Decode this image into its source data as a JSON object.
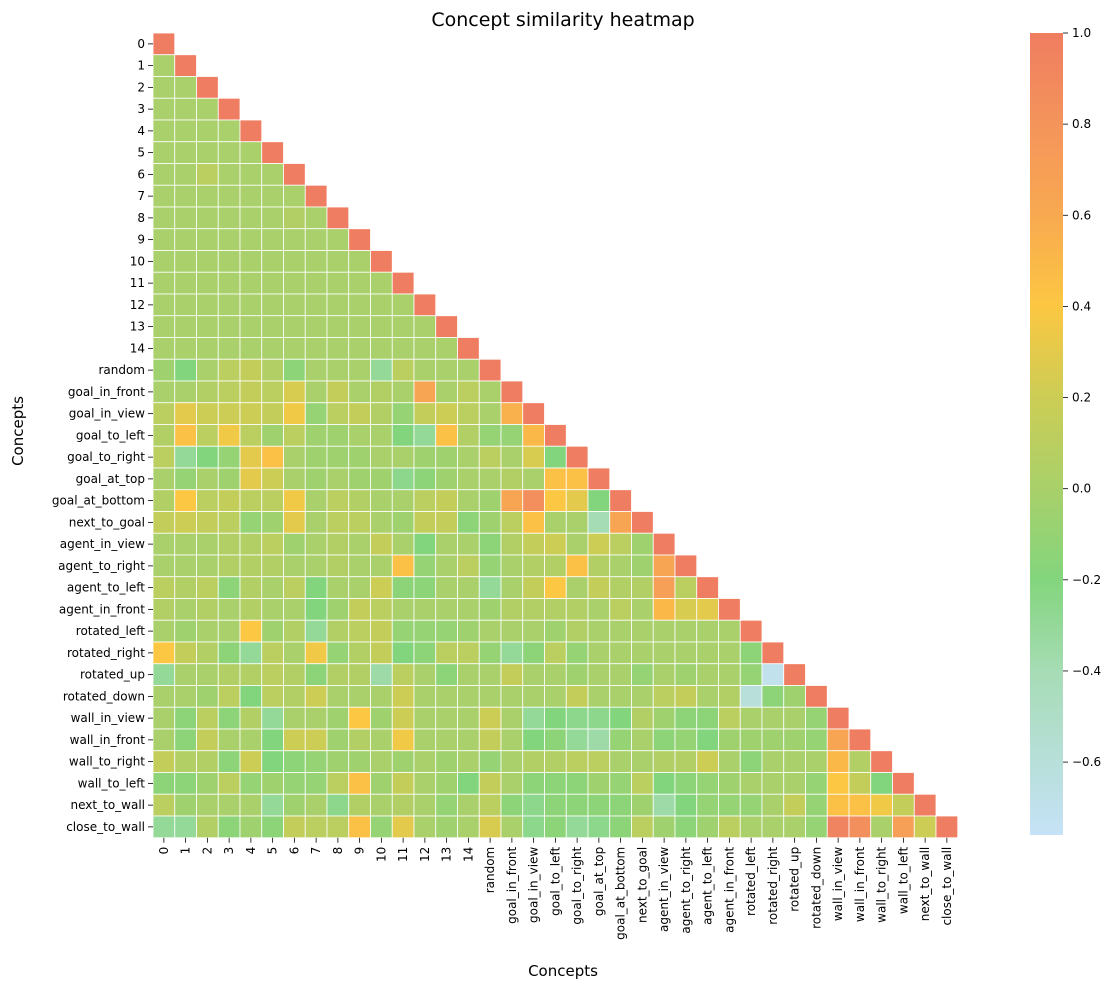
{
  "chart_data": {
    "type": "heatmap",
    "title": "Concept similarity heatmap",
    "xlabel": "Concepts",
    "ylabel": "Concepts",
    "mask": "upper-triangle",
    "labels": [
      "0",
      "1",
      "2",
      "3",
      "4",
      "5",
      "6",
      "7",
      "8",
      "9",
      "10",
      "11",
      "12",
      "13",
      "14",
      "random",
      "goal_in_front",
      "goal_in_view",
      "goal_to_left",
      "goal_to_right",
      "goal_at_top",
      "goal_at_bottom",
      "next_to_goal",
      "agent_in_view",
      "agent_to_right",
      "agent_to_left",
      "agent_in_front",
      "rotated_left",
      "rotated_right",
      "rotated_up",
      "rotated_down",
      "wall_in_view",
      "wall_in_front",
      "wall_to_right",
      "wall_to_left",
      "next_to_wall",
      "close_to_wall"
    ],
    "values": [
      [
        1.0
      ],
      [
        0.0,
        1.0
      ],
      [
        0.0,
        0.0,
        1.0
      ],
      [
        0.0,
        0.0,
        0.0,
        1.0
      ],
      [
        0.0,
        0.0,
        0.0,
        0.0,
        1.0
      ],
      [
        0.0,
        0.0,
        0.0,
        0.0,
        0.0,
        1.0
      ],
      [
        0.0,
        0.0,
        0.1,
        0.0,
        0.0,
        0.0,
        1.0
      ],
      [
        0.0,
        0.0,
        0.0,
        0.0,
        0.0,
        0.0,
        0.0,
        1.0
      ],
      [
        0.0,
        0.0,
        0.0,
        0.0,
        0.0,
        0.0,
        0.05,
        0.0,
        1.0
      ],
      [
        0.0,
        0.0,
        0.0,
        0.0,
        0.0,
        0.0,
        0.0,
        0.0,
        0.0,
        1.0
      ],
      [
        0.0,
        0.0,
        0.0,
        0.0,
        0.0,
        0.0,
        0.0,
        0.0,
        0.0,
        0.0,
        1.0
      ],
      [
        0.0,
        0.0,
        0.0,
        0.0,
        0.0,
        0.0,
        0.0,
        0.0,
        0.0,
        0.0,
        0.0,
        1.0
      ],
      [
        0.0,
        0.0,
        0.0,
        0.0,
        0.0,
        0.0,
        0.0,
        0.0,
        0.0,
        0.0,
        0.0,
        0.0,
        1.0
      ],
      [
        0.0,
        0.0,
        0.0,
        0.0,
        0.0,
        0.0,
        0.0,
        0.0,
        0.0,
        0.0,
        0.0,
        0.0,
        0.0,
        1.0
      ],
      [
        0.0,
        0.0,
        0.0,
        0.0,
        0.0,
        0.0,
        0.0,
        0.0,
        0.0,
        0.0,
        0.0,
        0.0,
        0.0,
        0.0,
        1.0
      ],
      [
        -0.05,
        -0.2,
        0.0,
        0.1,
        0.15,
        0.05,
        -0.15,
        0.0,
        0.0,
        0.0,
        -0.3,
        0.1,
        0.0,
        0.0,
        0.0,
        1.0
      ],
      [
        0.0,
        0.0,
        0.05,
        0.1,
        0.15,
        0.1,
        0.25,
        0.0,
        0.15,
        0.0,
        0.05,
        0.0,
        0.65,
        0.0,
        0.1,
        0.0,
        1.0
      ],
      [
        0.1,
        0.3,
        0.2,
        0.2,
        0.2,
        0.15,
        0.35,
        -0.1,
        0.1,
        0.15,
        0.05,
        -0.1,
        0.15,
        0.2,
        0.1,
        0.0,
        0.55,
        1.0
      ],
      [
        0.05,
        0.45,
        0.1,
        0.35,
        0.1,
        -0.05,
        0.1,
        -0.05,
        -0.05,
        0.0,
        0.0,
        -0.2,
        -0.3,
        0.45,
        0.05,
        -0.1,
        -0.1,
        0.5,
        1.0
      ],
      [
        0.1,
        -0.3,
        -0.2,
        -0.1,
        0.3,
        0.45,
        0.0,
        -0.05,
        -0.05,
        -0.05,
        0.0,
        0.0,
        -0.05,
        -0.05,
        0.0,
        0.1,
        0.0,
        0.25,
        -0.2,
        1.0
      ],
      [
        0.0,
        -0.1,
        0.0,
        -0.05,
        0.3,
        0.2,
        0.0,
        -0.05,
        0.0,
        -0.05,
        -0.05,
        -0.25,
        -0.15,
        -0.05,
        0.0,
        0.0,
        0.05,
        0.0,
        0.45,
        0.45,
        1.0
      ],
      [
        0.05,
        0.4,
        0.1,
        0.15,
        0.1,
        0.1,
        0.35,
        0.0,
        0.1,
        0.05,
        0.0,
        0.0,
        0.1,
        0.15,
        0.0,
        -0.05,
        0.65,
        0.85,
        0.4,
        0.3,
        -0.2,
        1.0
      ],
      [
        0.15,
        0.2,
        0.15,
        0.1,
        -0.1,
        -0.05,
        0.3,
        0.0,
        0.1,
        0.1,
        0.0,
        -0.05,
        0.15,
        0.15,
        -0.15,
        -0.05,
        0.1,
        0.45,
        0.0,
        0.0,
        -0.4,
        0.65,
        1.0
      ],
      [
        0.0,
        0.0,
        0.0,
        0.05,
        0.05,
        0.1,
        -0.05,
        0.0,
        0.05,
        0.0,
        0.15,
        0.0,
        -0.2,
        0.0,
        0.0,
        -0.15,
        0.05,
        0.15,
        0.2,
        0.0,
        0.2,
        0.1,
        -0.05,
        1.0
      ],
      [
        0.0,
        0.0,
        0.0,
        0.05,
        0.05,
        0.05,
        0.0,
        0.0,
        0.05,
        0.0,
        0.0,
        0.45,
        -0.1,
        0.0,
        0.1,
        -0.1,
        0.0,
        0.05,
        0.05,
        0.45,
        0.05,
        0.0,
        -0.05,
        0.65,
        1.0
      ],
      [
        0.1,
        0.05,
        0.1,
        -0.15,
        0.05,
        0.0,
        0.1,
        -0.2,
        0.0,
        0.0,
        0.2,
        -0.15,
        -0.15,
        0.0,
        0.0,
        -0.3,
        0.0,
        0.15,
        0.4,
        0.0,
        0.15,
        0.05,
        0.05,
        0.7,
        0.1,
        1.0
      ],
      [
        0.05,
        0.0,
        0.05,
        0.0,
        0.05,
        0.0,
        0.0,
        -0.2,
        -0.05,
        0.15,
        0.1,
        0.0,
        0.0,
        0.0,
        0.0,
        -0.05,
        0.05,
        0.05,
        0.05,
        0.05,
        0.0,
        0.1,
        0.0,
        0.5,
        0.25,
        0.3,
        1.0
      ],
      [
        0.0,
        -0.05,
        0.0,
        0.0,
        0.4,
        -0.05,
        0.05,
        -0.3,
        0.05,
        0.1,
        0.15,
        -0.1,
        -0.1,
        -0.1,
        -0.05,
        0.0,
        0.0,
        0.0,
        -0.05,
        0.05,
        0.0,
        0.0,
        0.0,
        0.0,
        0.0,
        0.0,
        0.0,
        1.0
      ],
      [
        0.4,
        0.15,
        0.05,
        -0.15,
        -0.3,
        0.1,
        0.0,
        0.35,
        -0.1,
        0.05,
        0.15,
        -0.2,
        -0.15,
        0.1,
        0.1,
        -0.1,
        -0.3,
        -0.15,
        0.1,
        -0.1,
        0.0,
        0.0,
        0.0,
        0.0,
        0.0,
        0.0,
        0.0,
        -0.15,
        1.0
      ],
      [
        -0.3,
        0.0,
        0.0,
        0.05,
        0.05,
        0.1,
        0.05,
        -0.15,
        0.05,
        0.05,
        -0.35,
        0.1,
        0.0,
        -0.15,
        0.0,
        0.0,
        0.15,
        0.0,
        0.0,
        -0.05,
        0.0,
        0.0,
        -0.1,
        0.0,
        -0.05,
        0.0,
        0.0,
        -0.1,
        -0.7,
        1.0
      ],
      [
        0.0,
        0.0,
        -0.05,
        0.1,
        -0.2,
        0.1,
        0.05,
        0.2,
        0.0,
        0.0,
        0.0,
        0.2,
        0.0,
        0.0,
        0.0,
        0.0,
        0.0,
        0.0,
        0.0,
        0.15,
        0.0,
        0.0,
        0.0,
        0.1,
        0.15,
        0.0,
        0.05,
        -0.6,
        -0.15,
        -0.05,
        1.0
      ],
      [
        0.0,
        -0.15,
        0.1,
        -0.15,
        0.05,
        -0.3,
        0.0,
        0.0,
        -0.05,
        0.4,
        -0.05,
        0.2,
        0.0,
        0.0,
        0.0,
        0.2,
        0.0,
        -0.3,
        -0.2,
        -0.25,
        -0.25,
        -0.2,
        0.05,
        -0.05,
        -0.15,
        -0.15,
        0.1,
        0.0,
        0.0,
        0.0,
        -0.1,
        1.0
      ],
      [
        0.0,
        -0.15,
        0.15,
        0.0,
        0.0,
        -0.2,
        0.2,
        0.2,
        -0.05,
        0.05,
        0.0,
        0.35,
        0.0,
        0.0,
        0.0,
        0.15,
        0.0,
        -0.2,
        -0.15,
        -0.3,
        -0.35,
        -0.1,
        0.0,
        -0.15,
        -0.1,
        -0.2,
        -0.05,
        -0.05,
        -0.05,
        -0.05,
        -0.1,
        0.65,
        1.0
      ],
      [
        0.15,
        0.05,
        0.05,
        -0.15,
        0.2,
        -0.2,
        -0.15,
        -0.1,
        -0.05,
        -0.05,
        0.0,
        -0.05,
        0.0,
        -0.05,
        0.0,
        -0.1,
        0.0,
        0.05,
        0.05,
        0.1,
        0.1,
        0.0,
        0.0,
        0.05,
        0.05,
        0.2,
        0.0,
        -0.15,
        0.0,
        0.0,
        0.0,
        0.5,
        0.05,
        1.0
      ],
      [
        -0.15,
        -0.15,
        -0.05,
        0.1,
        -0.1,
        -0.05,
        -0.1,
        -0.1,
        0.1,
        0.45,
        -0.05,
        0.15,
        0.0,
        -0.05,
        -0.2,
        0.15,
        0.0,
        -0.15,
        -0.15,
        -0.15,
        -0.05,
        -0.1,
        0.1,
        -0.2,
        -0.15,
        -0.1,
        -0.05,
        0.0,
        0.0,
        0.0,
        -0.1,
        0.4,
        0.15,
        -0.2,
        1.0
      ],
      [
        0.1,
        -0.05,
        0.0,
        0.0,
        0.0,
        -0.3,
        -0.05,
        0.0,
        -0.25,
        0.05,
        0.0,
        0.05,
        0.0,
        -0.1,
        0.0,
        0.1,
        -0.15,
        -0.25,
        -0.15,
        -0.15,
        -0.15,
        -0.15,
        -0.05,
        -0.35,
        -0.2,
        -0.1,
        -0.1,
        -0.1,
        0.0,
        0.15,
        -0.1,
        0.45,
        0.45,
        0.35,
        0.15,
        1.0
      ],
      [
        -0.3,
        -0.3,
        0.05,
        -0.15,
        -0.05,
        -0.15,
        0.15,
        0.1,
        0.1,
        0.45,
        -0.1,
        0.3,
        0.0,
        -0.05,
        0.0,
        0.25,
        0.0,
        -0.25,
        -0.15,
        -0.3,
        -0.25,
        -0.15,
        0.1,
        -0.05,
        -0.15,
        -0.05,
        0.1,
        0.0,
        0.0,
        0.0,
        -0.1,
        0.95,
        0.85,
        0.0,
        0.7,
        0.2,
        1.0
      ]
    ],
    "vmin": -0.76,
    "vmax": 1.0,
    "colorbar_ticks": [
      1.0,
      0.8,
      0.6,
      0.4,
      0.2,
      0.0,
      -0.2,
      -0.4,
      -0.6
    ],
    "colorbar_tick_labels": [
      "1.0",
      "0.8",
      "0.6",
      "0.4",
      "0.2",
      "0.0",
      "−0.2",
      "−0.4",
      "−0.6"
    ],
    "colormap": [
      {
        "v": -0.76,
        "color": "#c6e2f7"
      },
      {
        "v": -0.4,
        "color": "#a6dcb5"
      },
      {
        "v": -0.2,
        "color": "#83d57d"
      },
      {
        "v": 0.0,
        "color": "#a9d06a"
      },
      {
        "v": 0.2,
        "color": "#cccd55"
      },
      {
        "v": 0.4,
        "color": "#fcc742"
      },
      {
        "v": 0.6,
        "color": "#f8a950"
      },
      {
        "v": 0.8,
        "color": "#f4945b"
      },
      {
        "v": 1.0,
        "color": "#ef7d61"
      }
    ],
    "grid_line_color": "#ffffff",
    "grid": true,
    "colorbar": true
  }
}
